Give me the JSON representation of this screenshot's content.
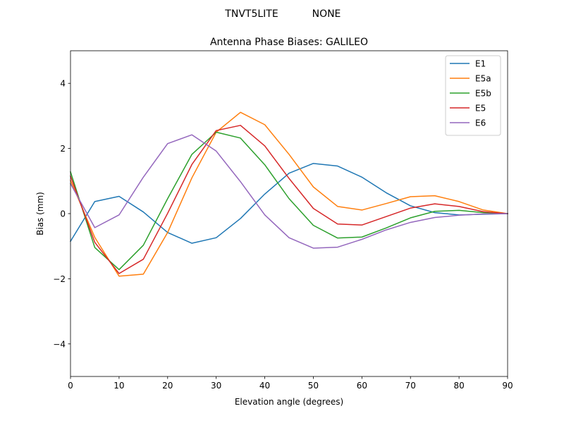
{
  "figure": {
    "suptitle_left": "TNVT5LITE",
    "suptitle_right": "NONE"
  },
  "chart_data": {
    "type": "line",
    "title": "Antenna Phase Biases: GALILEO",
    "xlabel": "Elevation angle (degrees)",
    "ylabel": "Bias (mm)",
    "xlim": [
      0,
      90
    ],
    "ylim": [
      -5,
      5
    ],
    "xticks": [
      0,
      10,
      20,
      30,
      40,
      50,
      60,
      70,
      80,
      90
    ],
    "yticks": [
      -4,
      -2,
      0,
      2,
      4
    ],
    "ytick_labels": [
      "−4",
      "−2",
      "0",
      "2",
      "4"
    ],
    "grid": false,
    "legend_position": "top-right",
    "x": [
      0,
      5,
      10,
      15,
      20,
      25,
      30,
      35,
      40,
      45,
      50,
      55,
      60,
      65,
      70,
      75,
      80,
      85,
      90
    ],
    "series": [
      {
        "name": "E1",
        "color": "#1f77b4",
        "values": [
          -0.85,
          0.37,
          0.53,
          0.05,
          -0.58,
          -0.91,
          -0.74,
          -0.15,
          0.6,
          1.24,
          1.54,
          1.46,
          1.12,
          0.64,
          0.24,
          0.03,
          -0.04,
          -0.02,
          0.0
        ]
      },
      {
        "name": "E5a",
        "color": "#ff7f0e",
        "values": [
          1.02,
          -0.73,
          -1.92,
          -1.86,
          -0.58,
          1.1,
          2.5,
          3.11,
          2.73,
          1.82,
          0.82,
          0.22,
          0.11,
          0.31,
          0.52,
          0.55,
          0.37,
          0.11,
          0.0
        ]
      },
      {
        "name": "E5b",
        "color": "#2ca02c",
        "values": [
          1.28,
          -1.04,
          -1.72,
          -0.97,
          0.46,
          1.82,
          2.5,
          2.32,
          1.5,
          0.46,
          -0.36,
          -0.75,
          -0.72,
          -0.44,
          -0.13,
          0.07,
          0.1,
          0.03,
          0.0
        ]
      },
      {
        "name": "E5",
        "color": "#d62728",
        "values": [
          1.15,
          -0.88,
          -1.84,
          -1.4,
          0.01,
          1.51,
          2.55,
          2.71,
          2.08,
          1.08,
          0.16,
          -0.32,
          -0.35,
          -0.09,
          0.17,
          0.3,
          0.22,
          0.06,
          0.0
        ]
      },
      {
        "name": "E6",
        "color": "#9467bd",
        "values": [
          0.92,
          -0.43,
          -0.04,
          1.12,
          2.15,
          2.42,
          1.92,
          0.98,
          -0.04,
          -0.74,
          -1.06,
          -1.03,
          -0.79,
          -0.5,
          -0.27,
          -0.12,
          -0.05,
          -0.01,
          0.0
        ]
      }
    ]
  }
}
